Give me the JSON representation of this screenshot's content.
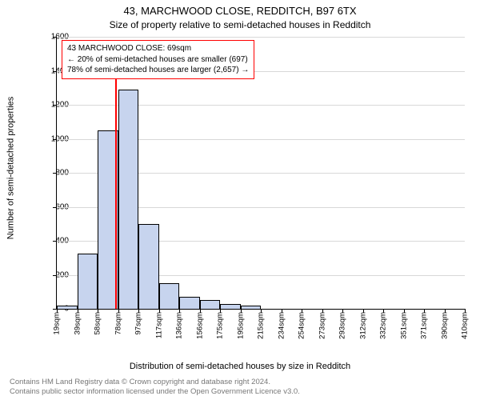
{
  "title": "43, MARCHWOOD CLOSE, REDDITCH, B97 6TX",
  "subtitle": "Size of property relative to semi-detached houses in Redditch",
  "ylabel": "Number of semi-detached properties",
  "xlabel": "Distribution of semi-detached houses by size in Redditch",
  "footer_line1": "Contains HM Land Registry data © Crown copyright and database right 2024.",
  "footer_line2": "Contains public sector information licensed under the Open Government Licence v3.0.",
  "chart": {
    "type": "histogram",
    "background_color": "#ffffff",
    "grid_color": "#d8d8d8",
    "axis_color": "#000000",
    "ylim": [
      0,
      1600
    ],
    "yticks": [
      0,
      200,
      400,
      600,
      800,
      1000,
      1200,
      1400,
      1600
    ],
    "bar_color_fill": "#c7d4ee",
    "bar_color_stroke": "#000000",
    "bar_width_ratio": 1.0,
    "x_start": 10,
    "x_step": 19.5,
    "xtick_labels": [
      "19sqm",
      "39sqm",
      "58sqm",
      "78sqm",
      "97sqm",
      "117sqm",
      "136sqm",
      "156sqm",
      "175sqm",
      "195sqm",
      "215sqm",
      "234sqm",
      "254sqm",
      "273sqm",
      "293sqm",
      "312sqm",
      "332sqm",
      "351sqm",
      "371sqm",
      "390sqm",
      "410sqm"
    ],
    "values": [
      20,
      325,
      1050,
      1290,
      500,
      150,
      70,
      50,
      30,
      20,
      0,
      0,
      0,
      0,
      0,
      0,
      0,
      0,
      0,
      0
    ],
    "marker": {
      "x_value": 69,
      "color": "#ff0000",
      "height_ratio": 0.92
    },
    "marker_x_range": [
      10,
      420
    ]
  },
  "legend": {
    "border_color": "#ff0000",
    "line1": "43 MARCHWOOD CLOSE: 69sqm",
    "line2": "← 20% of semi-detached houses are smaller (697)",
    "line3": "78% of semi-detached houses are larger (2,657) →"
  },
  "fonts": {
    "title_size": 13,
    "subtitle_size": 12,
    "axis_label_size": 11,
    "tick_size": 10,
    "xtick_size": 9.5,
    "legend_size": 10,
    "footer_size": 9.5,
    "footer_color": "#777777"
  }
}
